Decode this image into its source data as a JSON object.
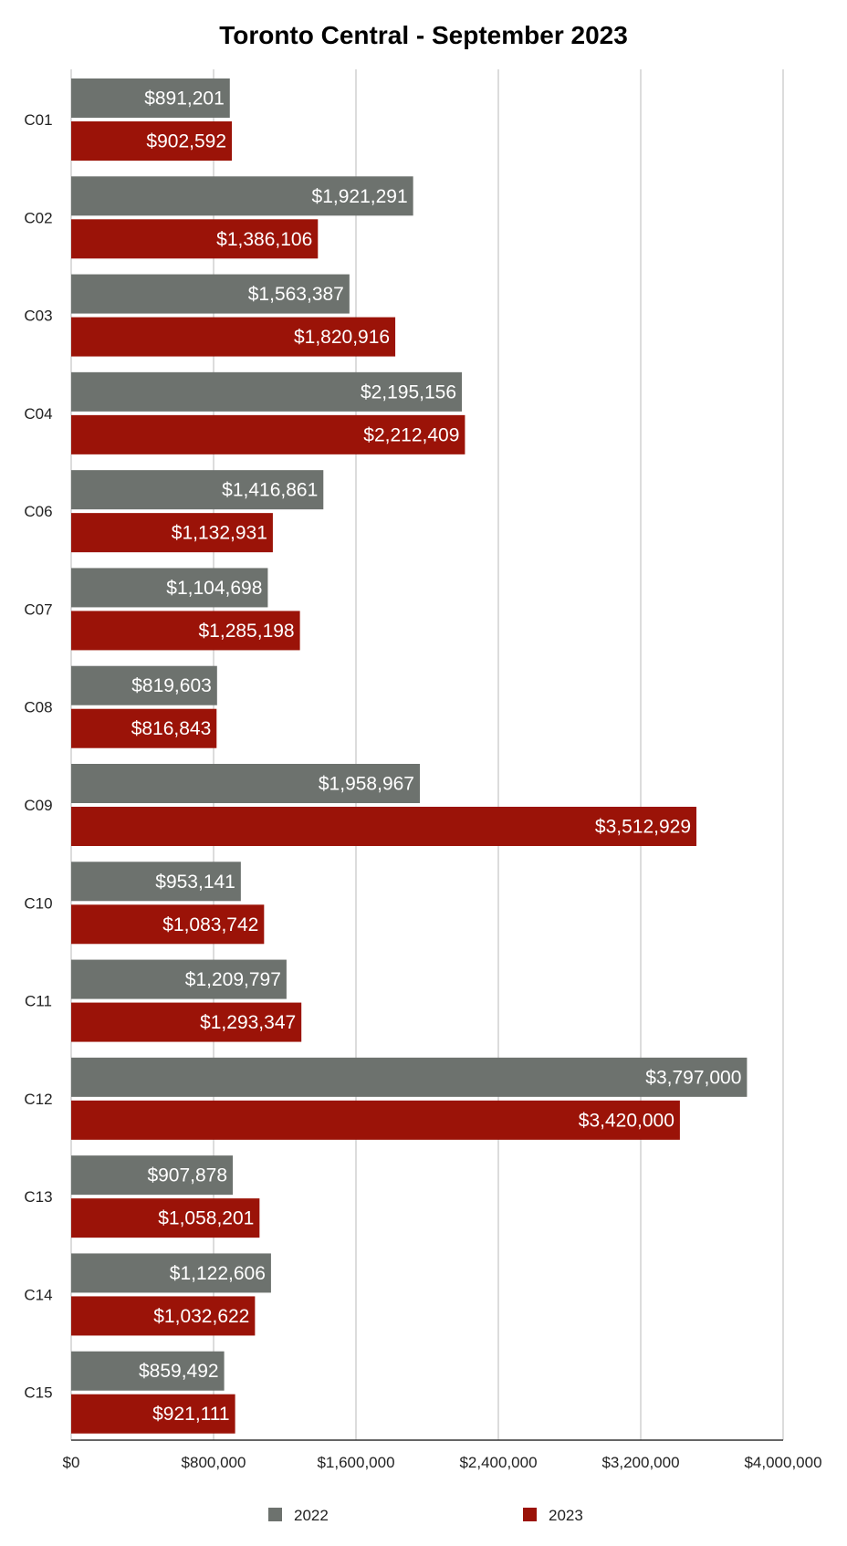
{
  "chart_data": {
    "type": "bar",
    "orientation": "horizontal",
    "title": "Toronto Central - September 2023",
    "xlabel": "",
    "ylabel": "",
    "categories": [
      "C01",
      "C02",
      "C03",
      "C04",
      "C06",
      "C07",
      "C08",
      "C09",
      "C10",
      "C11",
      "C12",
      "C13",
      "C14",
      "C15"
    ],
    "series": [
      {
        "name": "2022",
        "color": "#6d726e",
        "values": [
          891201,
          1921291,
          1563387,
          2195156,
          1416861,
          1104698,
          819603,
          1958967,
          953141,
          1209797,
          3797000,
          907878,
          1122606,
          859492
        ],
        "labels": [
          "$891,201",
          "$1,921,291",
          "$1,563,387",
          "$2,195,156",
          "$1,416,861",
          "$1,104,698",
          "$819,603",
          "$1,958,967",
          "$953,141",
          "$1,209,797",
          "$3,797,000",
          "$907,878",
          "$1,122,606",
          "$859,492"
        ]
      },
      {
        "name": "2023",
        "color": "#9b1308",
        "values": [
          902592,
          1386106,
          1820916,
          2212409,
          1132931,
          1285198,
          816843,
          3512929,
          1083742,
          1293347,
          3420000,
          1058201,
          1032622,
          921111
        ],
        "labels": [
          "$902,592",
          "$1,386,106",
          "$1,820,916",
          "$2,212,409",
          "$1,132,931",
          "$1,285,198",
          "$816,843",
          "$3,512,929",
          "$1,083,742",
          "$1,293,347",
          "$3,420,000",
          "$1,058,201",
          "$1,032,622",
          "$921,111"
        ]
      }
    ],
    "xlim": [
      0,
      4000000
    ],
    "ticks": [
      0,
      800000,
      1600000,
      2400000,
      3200000,
      4000000
    ],
    "tick_labels": [
      "$0",
      "$800,000",
      "$1,600,000",
      "$2,400,000",
      "$3,200,000",
      "$4,000,000"
    ],
    "grid": "vertical",
    "legend_position": "bottom"
  }
}
